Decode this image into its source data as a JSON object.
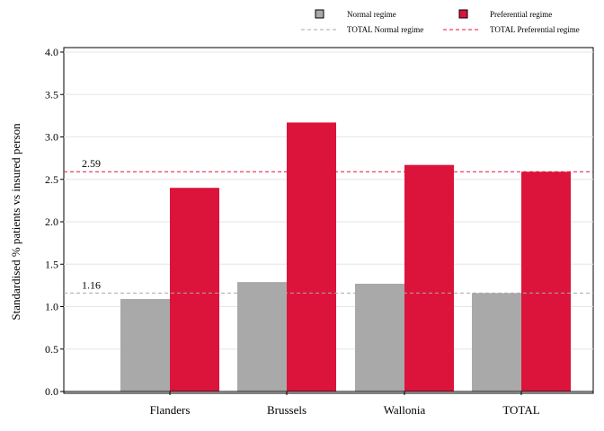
{
  "chart_data": {
    "type": "bar",
    "title": "",
    "xlabel": "",
    "ylabel": "Standardised % patients vs insured person",
    "ylim": [
      0,
      4.0
    ],
    "yticks": [
      "0.0",
      "0.5",
      "1.0",
      "1.5",
      "2.0",
      "2.5",
      "3.0",
      "3.5",
      "4.0"
    ],
    "grid": true,
    "legend_position": "top-right",
    "categories": [
      "Flanders",
      "Brussels",
      "Wallonia",
      "TOTAL"
    ],
    "series": [
      {
        "name": "Normal regime",
        "color": "#a9a9a9",
        "values": [
          1.09,
          1.29,
          1.27,
          1.16
        ]
      },
      {
        "name": "Preferential regime",
        "color": "#dc143c",
        "values": [
          2.4,
          3.17,
          2.67,
          2.59
        ]
      }
    ],
    "reference_lines": [
      {
        "name": "TOTAL Normal regime",
        "value": 1.16,
        "label": "1.16",
        "color": "#a9a9a9",
        "style": "dashed"
      },
      {
        "name": "TOTAL Preferential regime",
        "value": 2.59,
        "label": "2.59",
        "color": "#dc143c",
        "style": "dashed"
      }
    ]
  }
}
